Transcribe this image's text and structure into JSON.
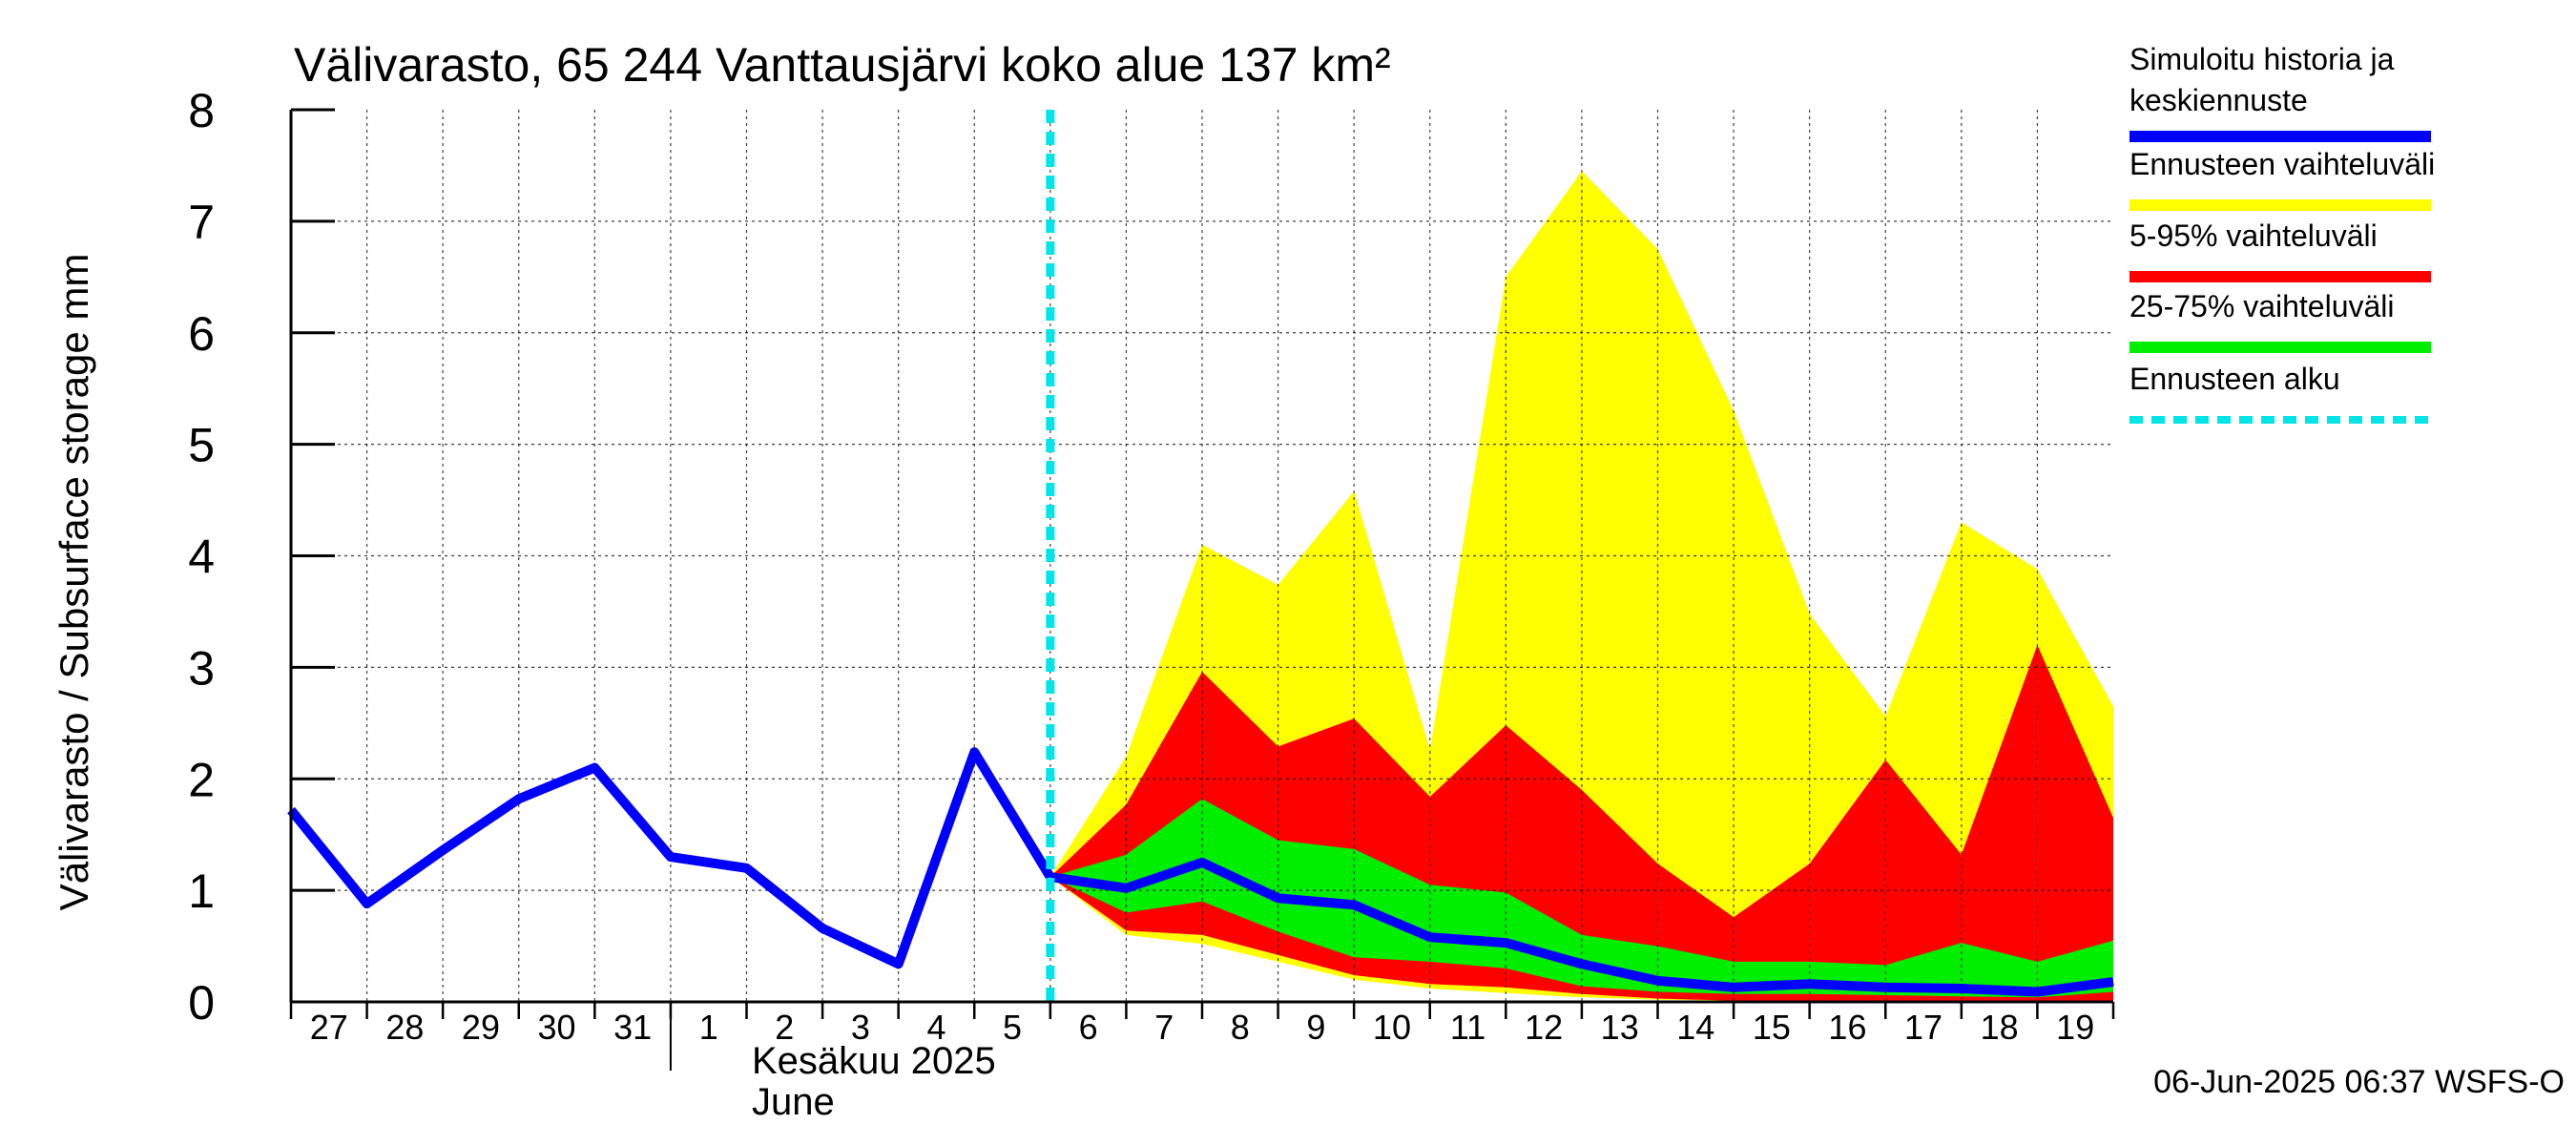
{
  "chart_data": {
    "type": "area",
    "title": "Välivarasto, 65 244 Vanttausjärvi koko alue 137 km²",
    "ylabel": "Välivarasto / Subsurface storage  mm",
    "xlabel_month_fi": "Kesäkuu  2025",
    "xlabel_month_en": "June",
    "ylim": [
      0,
      8
    ],
    "yticks": [
      "0",
      "1",
      "2",
      "3",
      "4",
      "5",
      "6",
      "7",
      "8"
    ],
    "x_day_labels": [
      "27",
      "28",
      "29",
      "30",
      "31",
      "1",
      "2",
      "3",
      "4",
      "5",
      "6",
      "7",
      "8",
      "9",
      "10",
      "11",
      "12",
      "13",
      "14",
      "15",
      "16",
      "17",
      "18",
      "19"
    ],
    "x_start": "2025-05-27",
    "forecast_start": "2025-06-06",
    "grid": true,
    "legend_position": "right",
    "legend": [
      {
        "label": "Simuloitu historia ja keskiennuste",
        "color": "#0000ff",
        "style": "solid"
      },
      {
        "label": "Ennusteen vaihteluväli",
        "color": "#ffff00",
        "style": "solid"
      },
      {
        "label": "5-95% vaihteluväli",
        "color": "#ff0000",
        "style": "solid"
      },
      {
        "label": "25-75% vaihteluväli",
        "color": "#00ee00",
        "style": "solid"
      },
      {
        "label": "Ennusteen alku",
        "color": "#00e5e5",
        "style": "dashed"
      }
    ],
    "history_dates": [
      "2025-05-27",
      "2025-05-28",
      "2025-05-29",
      "2025-05-30",
      "2025-05-31",
      "2025-06-01",
      "2025-06-02",
      "2025-06-03",
      "2025-06-04",
      "2025-06-05",
      "2025-06-06"
    ],
    "history_values": [
      1.72,
      0.88,
      1.36,
      1.82,
      2.1,
      1.3,
      1.2,
      0.66,
      0.34,
      2.24,
      1.12
    ],
    "forecast_dates": [
      "2025-06-06",
      "2025-06-07",
      "2025-06-08",
      "2025-06-09",
      "2025-06-10",
      "2025-06-11",
      "2025-06-12",
      "2025-06-13",
      "2025-06-14",
      "2025-06-15",
      "2025-06-16",
      "2025-06-17",
      "2025-06-18",
      "2025-06-19",
      "2025-06-20"
    ],
    "forecast_median": [
      1.12,
      1.02,
      1.25,
      0.93,
      0.87,
      0.58,
      0.53,
      0.34,
      0.19,
      0.13,
      0.16,
      0.13,
      0.12,
      0.09,
      0.18
    ],
    "p25": [
      1.12,
      0.8,
      0.9,
      0.63,
      0.4,
      0.36,
      0.3,
      0.14,
      0.09,
      0.07,
      0.07,
      0.06,
      0.05,
      0.04,
      0.09
    ],
    "p75": [
      1.12,
      1.32,
      1.82,
      1.45,
      1.37,
      1.05,
      0.98,
      0.6,
      0.5,
      0.36,
      0.36,
      0.33,
      0.53,
      0.36,
      0.55
    ],
    "p5": [
      1.12,
      0.64,
      0.6,
      0.42,
      0.24,
      0.16,
      0.13,
      0.07,
      0.03,
      0.01,
      0.01,
      0.01,
      0.01,
      0.0,
      0.0
    ],
    "p95": [
      1.12,
      1.77,
      2.96,
      2.29,
      2.54,
      1.84,
      2.48,
      1.9,
      1.24,
      0.76,
      1.24,
      2.17,
      1.32,
      3.2,
      1.65
    ],
    "min": [
      1.12,
      0.6,
      0.52,
      0.36,
      0.2,
      0.12,
      0.08,
      0.04,
      0.02,
      0.01,
      0.01,
      0.0,
      0.0,
      0.0,
      0.0
    ],
    "max": [
      1.12,
      2.2,
      4.1,
      3.74,
      4.58,
      2.26,
      6.5,
      7.45,
      6.75,
      5.3,
      3.48,
      2.56,
      4.3,
      3.88,
      2.65
    ]
  },
  "footer": "06-Jun-2025 06:37 WSFS-O"
}
